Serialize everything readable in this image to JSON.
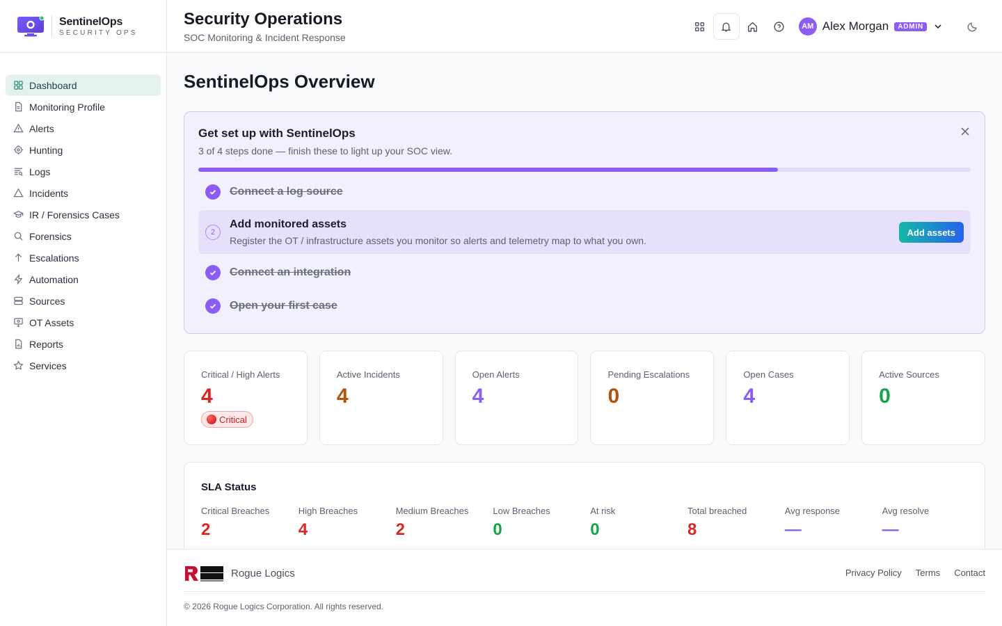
{
  "brand": {
    "name": "SentinelOps",
    "tagline": "SECURITY OPS"
  },
  "sidebar": {
    "items": [
      {
        "label": "Dashboard",
        "icon": "grid-icon",
        "active": true
      },
      {
        "label": "Monitoring Profile",
        "icon": "document-icon"
      },
      {
        "label": "Alerts",
        "icon": "warning-triangle-icon"
      },
      {
        "label": "Hunting",
        "icon": "crosshair-icon"
      },
      {
        "label": "Logs",
        "icon": "list-search-icon"
      },
      {
        "label": "Incidents",
        "icon": "warning-triangle-icon"
      },
      {
        "label": "IR / Forensics Cases",
        "icon": "graduation-cap-icon"
      },
      {
        "label": "Forensics",
        "icon": "search-icon"
      },
      {
        "label": "Escalations",
        "icon": "arrow-up-icon"
      },
      {
        "label": "Automation",
        "icon": "bolt-icon"
      },
      {
        "label": "Sources",
        "icon": "database-icon"
      },
      {
        "label": "OT Assets",
        "icon": "monitor-icon"
      },
      {
        "label": "Reports",
        "icon": "report-icon"
      },
      {
        "label": "Services",
        "icon": "star-icon"
      }
    ]
  },
  "header": {
    "title": "Security Operations",
    "subtitle": "SOC Monitoring & Incident Response",
    "user": {
      "initials": "AM",
      "name": "Alex Morgan",
      "role": "ADMIN"
    }
  },
  "main": {
    "page_title": "SentinelOps Overview",
    "setup": {
      "title": "Get set up with SentinelOps",
      "subtitle": "3 of 4 steps done — finish these to light up your SOC view.",
      "progress": 0.75,
      "steps": [
        {
          "label": "Connect a log source",
          "done": true
        },
        {
          "number": "2",
          "label": "Add monitored assets",
          "description": "Register the OT / infrastructure assets you monitor so alerts and telemetry map to what you own.",
          "action": "Add assets",
          "done": false
        },
        {
          "label": "Connect an integration",
          "done": true
        },
        {
          "label": "Open your first case",
          "done": true
        }
      ]
    },
    "stats": [
      {
        "label": "Critical / High Alerts",
        "value": "4",
        "badge": "Critical"
      },
      {
        "label": "Active Incidents",
        "value": "4"
      },
      {
        "label": "Open Alerts",
        "value": "4"
      },
      {
        "label": "Pending Escalations",
        "value": "0"
      },
      {
        "label": "Open Cases",
        "value": "4"
      },
      {
        "label": "Active Sources",
        "value": "0"
      }
    ],
    "sla": {
      "title": "SLA Status",
      "items": [
        {
          "label": "Critical Breaches",
          "value": "2"
        },
        {
          "label": "High Breaches",
          "value": "4"
        },
        {
          "label": "Medium Breaches",
          "value": "2"
        },
        {
          "label": "Low Breaches",
          "value": "0"
        },
        {
          "label": "At risk",
          "value": "0"
        },
        {
          "label": "Total breached",
          "value": "8"
        },
        {
          "label": "Avg response",
          "value": "—"
        },
        {
          "label": "Avg resolve",
          "value": "—"
        }
      ]
    }
  },
  "footer": {
    "company": "Rogue Logics",
    "links": [
      "Privacy Policy",
      "Terms",
      "Contact"
    ],
    "copyright": "© 2026 Rogue Logics Corporation. All rights reserved."
  },
  "colors": {
    "accent": "#8b5cf6",
    "critical": "#dc2626",
    "warning": "#b45309",
    "success": "#16a34a",
    "active_nav_bg": "#e3f2ef"
  }
}
